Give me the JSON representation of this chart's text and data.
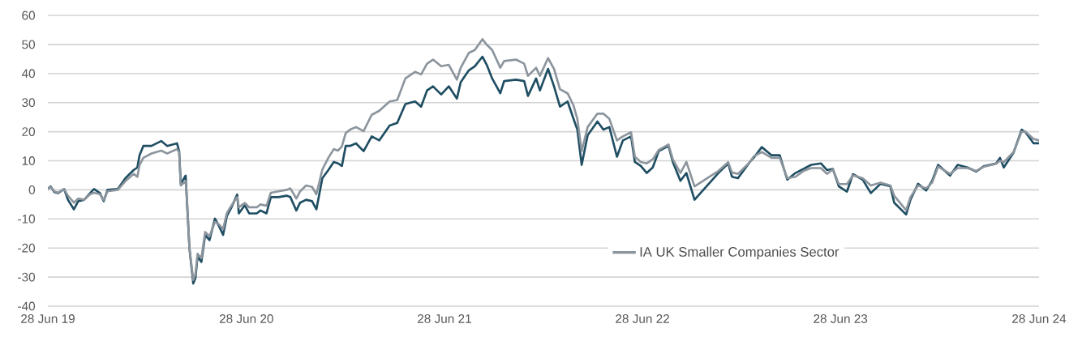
{
  "chart_data": {
    "type": "line",
    "xlim": [
      "2019-06-28",
      "2024-06-28"
    ],
    "ylim": [
      -40,
      60
    ],
    "yticks": [
      -40,
      -30,
      -20,
      -10,
      0,
      10,
      20,
      30,
      40,
      50,
      60
    ],
    "xticks": [
      {
        "value": "2019-06-28",
        "label": "28 Jun 19"
      },
      {
        "value": "2020-06-28",
        "label": "28 Jun 20"
      },
      {
        "value": "2021-06-28",
        "label": "28 Jun 21"
      },
      {
        "value": "2022-06-28",
        "label": "28 Jun 22"
      },
      {
        "value": "2023-06-28",
        "label": "28 Jun 23"
      },
      {
        "value": "2024-06-28",
        "label": "28 Jun 24"
      }
    ],
    "x": [
      "2019-06-28",
      "2019-07-03",
      "2019-07-10",
      "2019-07-17",
      "2019-07-28",
      "2019-08-04",
      "2019-08-15",
      "2019-08-23",
      "2019-09-03",
      "2019-09-14",
      "2019-09-21",
      "2019-10-02",
      "2019-10-09",
      "2019-10-16",
      "2019-11-04",
      "2019-11-18",
      "2019-12-03",
      "2019-12-10",
      "2019-12-14",
      "2019-12-21",
      "2020-01-05",
      "2020-01-23",
      "2020-02-03",
      "2020-02-21",
      "2020-02-25",
      "2020-02-28",
      "2020-03-08",
      "2020-03-11",
      "2020-03-15",
      "2020-03-22",
      "2020-03-26",
      "2020-03-30",
      "2020-04-06",
      "2020-04-13",
      "2020-04-21",
      "2020-05-01",
      "2020-05-09",
      "2020-05-16",
      "2020-05-23",
      "2020-05-31",
      "2020-06-11",
      "2020-06-14",
      "2020-06-25",
      "2020-07-03",
      "2020-07-17",
      "2020-07-24",
      "2020-08-04",
      "2020-08-12",
      "2020-08-26",
      "2020-09-10",
      "2020-09-17",
      "2020-09-28",
      "2020-10-05",
      "2020-10-16",
      "2020-10-27",
      "2020-11-04",
      "2020-11-15",
      "2020-11-26",
      "2020-12-06",
      "2020-12-14",
      "2020-12-21",
      "2020-12-28",
      "2021-01-05",
      "2021-01-16",
      "2021-01-30",
      "2021-02-14",
      "2021-02-28",
      "2021-03-19",
      "2021-04-02",
      "2021-04-17",
      "2021-05-05",
      "2021-05-16",
      "2021-05-27",
      "2021-06-07",
      "2021-06-22",
      "2021-07-06",
      "2021-07-21",
      "2021-07-28",
      "2021-08-12",
      "2021-08-23",
      "2021-09-06",
      "2021-09-14",
      "2021-09-24",
      "2021-10-09",
      "2021-10-16",
      "2021-11-07",
      "2021-11-22",
      "2021-11-29",
      "2021-12-14",
      "2021-12-21",
      "2022-01-05",
      "2022-01-16",
      "2022-01-27",
      "2022-02-10",
      "2022-02-21",
      "2022-02-28",
      "2022-03-08",
      "2022-03-19",
      "2022-04-06",
      "2022-04-17",
      "2022-04-28",
      "2022-05-12",
      "2022-05-23",
      "2022-06-07",
      "2022-06-14",
      "2022-06-25",
      "2022-07-06",
      "2022-07-17",
      "2022-07-28",
      "2022-08-15",
      "2022-08-23",
      "2022-09-06",
      "2022-09-17",
      "2022-10-02",
      "2022-11-15",
      "2022-12-03",
      "2022-12-10",
      "2022-12-21",
      "2023-01-12",
      "2023-01-19",
      "2023-02-03",
      "2023-02-21",
      "2023-03-08",
      "2023-03-22",
      "2023-04-06",
      "2023-04-21",
      "2023-05-05",
      "2023-05-23",
      "2023-06-03",
      "2023-06-14",
      "2023-06-25",
      "2023-07-10",
      "2023-07-21",
      "2023-08-08",
      "2023-08-23",
      "2023-09-10",
      "2023-09-28",
      "2023-10-05",
      "2023-10-27",
      "2023-11-04",
      "2023-11-18",
      "2023-12-03",
      "2023-12-14",
      "2023-12-25",
      "2024-01-16",
      "2024-01-30",
      "2024-02-17",
      "2024-03-04",
      "2024-03-19",
      "2024-04-10",
      "2024-04-17",
      "2024-04-24",
      "2024-05-12",
      "2024-05-27",
      "2024-06-03",
      "2024-06-18",
      "2024-06-28"
    ],
    "grid": "y",
    "legend": "bottom right",
    "marker": "none",
    "line_style": "solid",
    "series": [
      {
        "color": "#1f4e63",
        "values": [
          0.3,
          1.2,
          -0.8,
          -1.1,
          0.3,
          -3.4,
          -6.7,
          -3.9,
          -3.4,
          -1.1,
          0.3,
          -1.1,
          -3.9,
          0,
          0.3,
          4,
          6.8,
          7.7,
          11.9,
          15.1,
          15.1,
          16.8,
          15.1,
          16,
          13.3,
          2.1,
          4.9,
          -6.2,
          -20.1,
          -32.2,
          -30.4,
          -22.9,
          -24.8,
          -15.5,
          -17.3,
          -9.9,
          -12.7,
          -15.5,
          -9,
          -6.2,
          -1.6,
          -8.1,
          -5.3,
          -8.1,
          -8.1,
          -7.1,
          -8.1,
          -2.5,
          -2.5,
          -2,
          -2.5,
          -7.1,
          -4.4,
          -3.4,
          -3.9,
          -6.7,
          4,
          6.8,
          9.6,
          9.1,
          8.2,
          15.1,
          15.1,
          16,
          13.3,
          18.4,
          17,
          22.1,
          23,
          29.5,
          30.4,
          28.6,
          34.2,
          35.6,
          32.8,
          35.6,
          31.4,
          37,
          41.1,
          42.5,
          45.8,
          43,
          38.3,
          33.2,
          37.4,
          37.9,
          37.4,
          32.3,
          38.3,
          34.2,
          41.6,
          35.6,
          28.6,
          30.4,
          24.4,
          20.7,
          8.6,
          18.8,
          23.5,
          20.7,
          21.6,
          11.4,
          17,
          18.4,
          9.6,
          8.2,
          5.8,
          7.7,
          13.3,
          15.1,
          9.6,
          3.1,
          5.8,
          -3.4,
          5.8,
          9.1,
          4.5,
          4,
          9.6,
          11,
          14.7,
          11.9,
          11.9,
          3.5,
          5.8,
          7.2,
          8.6,
          9.1,
          6.8,
          7.2,
          1.2,
          -0.6,
          5.4,
          3.5,
          -1.1,
          2.1,
          1.2,
          -4.4,
          -8.5,
          -3.4,
          2.1,
          -0.2,
          3.1,
          8.6,
          4.9,
          8.6,
          7.7,
          6.3,
          8.2,
          9.1,
          11,
          7.7,
          12.8,
          20.7,
          19.8,
          16,
          16
        ]
      },
      {
        "name": "IA UK Smaller Companies Sector",
        "color": "#8c959d",
        "values": [
          0.3,
          1,
          -0.5,
          -1,
          0.3,
          -2,
          -4.4,
          -3,
          -3.4,
          -1.5,
          -1,
          -1.5,
          -3.5,
          -0.5,
          0,
          3,
          5.5,
          4.5,
          8.5,
          11,
          12.5,
          13.5,
          12.5,
          14,
          13,
          1.5,
          3,
          -5,
          -20,
          -31,
          -29,
          -22,
          -23.5,
          -14.5,
          -16,
          -11,
          -12,
          -13.5,
          -8,
          -5.5,
          -2.5,
          -6,
          -4.5,
          -6,
          -6,
          -5,
          -5.5,
          -1,
          -0.5,
          0,
          0.5,
          -3,
          -0.5,
          1.5,
          1,
          -1.5,
          7,
          11,
          14,
          13.5,
          15,
          19.5,
          20.7,
          21.6,
          20.2,
          25.8,
          27.2,
          30.4,
          30.9,
          38.3,
          40.6,
          39.7,
          43.4,
          44.8,
          42.5,
          43,
          37.9,
          42,
          47.1,
          48.1,
          51.8,
          49.9,
          48.1,
          42,
          44.3,
          44.8,
          43.4,
          39.2,
          42,
          39.2,
          45.3,
          41.6,
          34.6,
          33.2,
          29,
          24.4,
          13.3,
          21.6,
          26.2,
          26.2,
          24.4,
          17,
          18.4,
          19.8,
          11.4,
          9.6,
          9.1,
          10.5,
          13.7,
          15.6,
          10.5,
          5.8,
          9.6,
          1.2,
          6.5,
          9.5,
          6,
          5.5,
          9.5,
          11.5,
          13,
          11,
          11,
          4,
          4.5,
          6.5,
          7.5,
          7.5,
          5.5,
          7,
          2,
          2,
          5,
          4,
          1.5,
          2.5,
          1.5,
          -2,
          -7,
          -2.5,
          1.5,
          0.5,
          2.5,
          8,
          5.5,
          7.5,
          7.5,
          6.5,
          8,
          9,
          10,
          9.5,
          13,
          20,
          20,
          17.5,
          17
        ]
      }
    ]
  }
}
